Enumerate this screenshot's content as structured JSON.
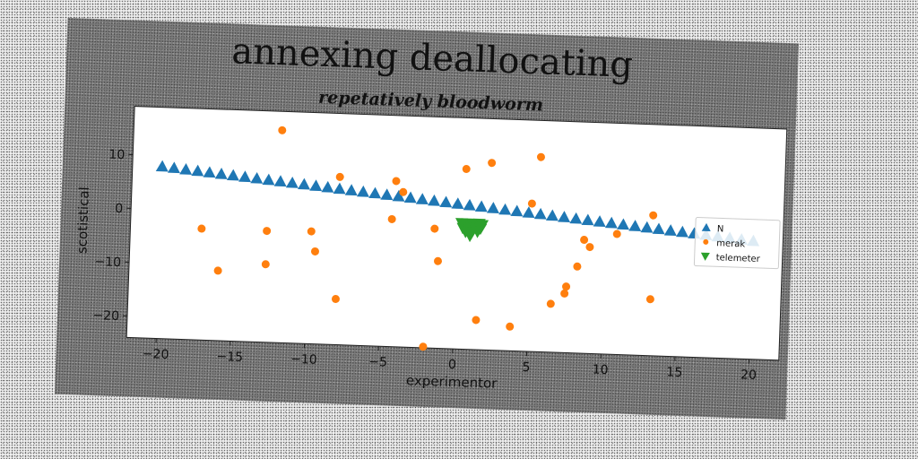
{
  "chart_data": {
    "type": "scatter",
    "title": "annexing deallocating",
    "subtitle": "repetatively bloodworm",
    "xlabel": "experimentor",
    "ylabel": "scotistical",
    "xlim": [
      -22,
      22
    ],
    "ylim": [
      -24,
      19
    ],
    "xticks": [
      -20,
      -15,
      -10,
      -5,
      0,
      5,
      10,
      15,
      20
    ],
    "yticks": [
      10,
      0,
      -10,
      -20
    ],
    "grid": false,
    "legend_position": "right",
    "series": [
      {
        "name": "N",
        "marker": "triangle-up",
        "color": "#1f77b4",
        "x": [
          -20,
          -19.2,
          -18.4,
          -17.6,
          -16.8,
          -16,
          -15.2,
          -14.4,
          -13.6,
          -12.8,
          -12,
          -11.2,
          -10.4,
          -9.6,
          -8.8,
          -8,
          -7.2,
          -6.4,
          -5.6,
          -4.8,
          -4,
          -3.2,
          -2.4,
          -1.6,
          -0.8,
          0,
          0.8,
          1.6,
          2.4,
          3.2,
          4,
          4.8,
          5.6,
          6.4,
          7.2,
          8,
          8.8,
          9.6,
          10.4,
          11.2,
          12,
          12.8,
          13.6,
          14.4,
          15.2,
          16,
          16.8,
          17.6,
          18.4,
          19.2,
          20
        ],
        "y": [
          8,
          7.8,
          7.6,
          7.4,
          7.2,
          7,
          6.8,
          6.6,
          6.4,
          6.2,
          6,
          5.8,
          5.6,
          5.4,
          5.2,
          5,
          4.8,
          4.6,
          4.4,
          4.2,
          4,
          3.8,
          3.6,
          3.4,
          3.2,
          3,
          2.8,
          2.6,
          2.4,
          2.2,
          2,
          1.8,
          1.6,
          1.4,
          1.2,
          1,
          0.8,
          0.6,
          0.4,
          0.2,
          0,
          -0.2,
          -0.4,
          -0.6,
          -0.8,
          -1,
          -1.2,
          -1.4,
          -1.6,
          -1.8,
          -2
        ]
      },
      {
        "name": "merak",
        "marker": "circle",
        "color": "#ff7f0e",
        "x": [
          -12,
          -8,
          -4.2,
          -3.7,
          0.5,
          2.2,
          5.5,
          5,
          -17.2,
          -12.8,
          -9.8,
          -4.4,
          -1.5,
          -9.5,
          -1.2,
          -16,
          -12.8,
          -8,
          1.5,
          3.8,
          6.5,
          7.4,
          7.5,
          8.2,
          8.6,
          9,
          10.8,
          13.2,
          13.2,
          -2
        ],
        "y": [
          15.5,
          7.2,
          6.8,
          4.8,
          9.5,
          10.8,
          12.2,
          3.5,
          -3.3,
          -3.3,
          -3.1,
          -0.3,
          -1.8,
          -6.8,
          -7.8,
          -11,
          -9.5,
          -15.5,
          -18.5,
          -19.5,
          -15,
          -13,
          -11.7,
          -7.9,
          -2.9,
          -4.2,
          -1.6,
          2.1,
          -13.5,
          -23.8
        ]
      },
      {
        "name": "telemeter",
        "marker": "triangle-down",
        "color": "#2ca02c",
        "x": [
          0.3,
          0.5,
          0.7,
          0.9,
          1.1,
          1.3,
          1.5,
          1.7,
          0.4,
          0.8,
          1.2,
          1.6,
          0.6,
          1,
          1.4,
          0.9
        ],
        "y": [
          -0.6,
          -0.8,
          -0.6,
          -0.9,
          -0.7,
          -0.9,
          -0.6,
          -0.8,
          -1.5,
          -1.6,
          -1.4,
          -1.5,
          -2.2,
          -2.3,
          -2.1,
          -2.9
        ]
      }
    ]
  }
}
